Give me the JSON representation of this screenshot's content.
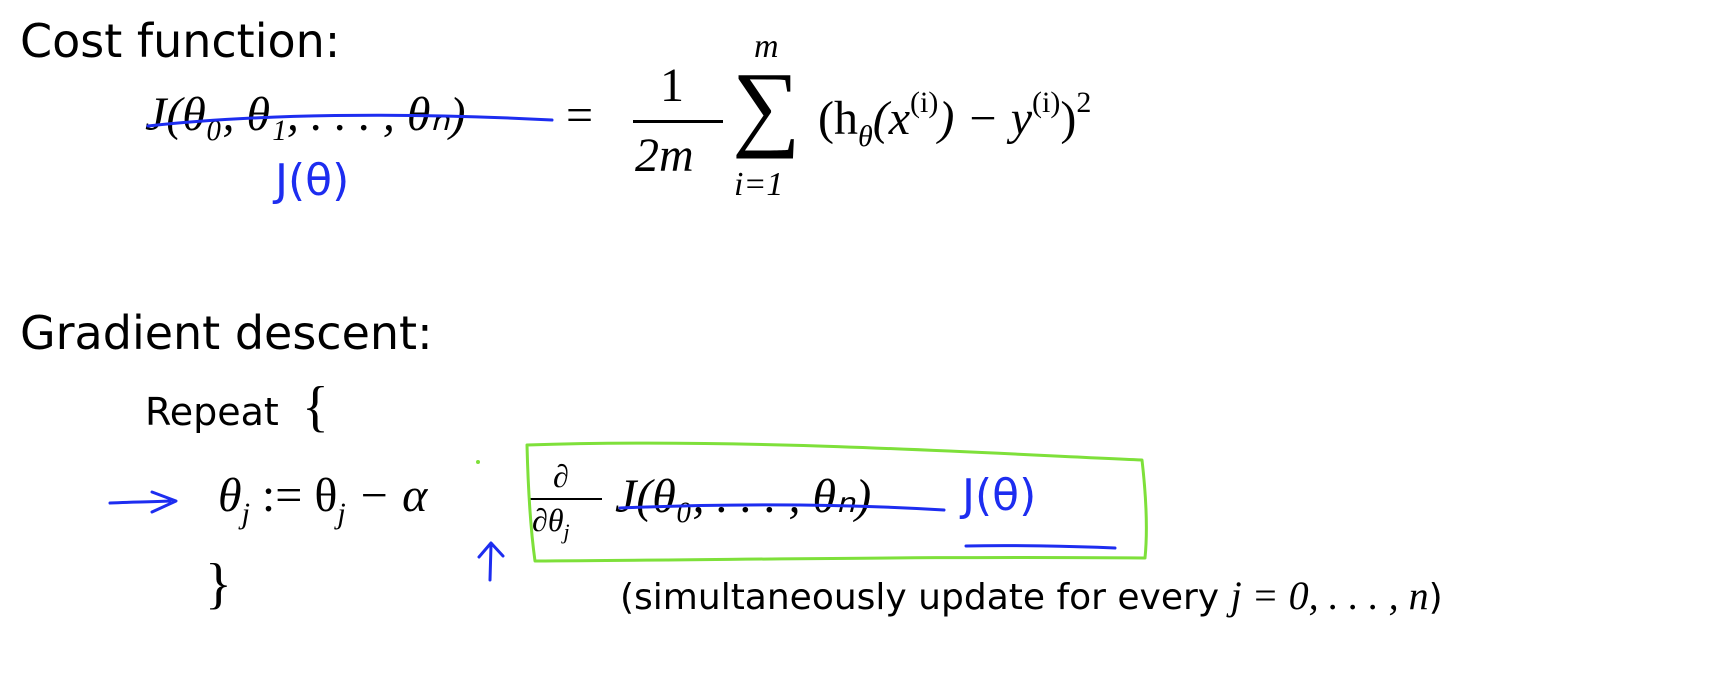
{
  "cost": {
    "heading": "Cost function:",
    "lhs": "J(θ₀, θ₁, . . . , θₙ)",
    "equals": "=",
    "frac_num": "1",
    "frac_den": "2m",
    "sum_sign": "∑",
    "sum_top": "m",
    "sum_bottom": "i=1",
    "term_open": "(h",
    "term_theta_sub": "θ",
    "term_x": "(x",
    "term_x_sup": "(i)",
    "term_minus": ") − y",
    "term_y_sup": "(i)",
    "term_close": ")",
    "term_square": "2",
    "handwritten": "J(θ)"
  },
  "gradient": {
    "heading": "Gradient descent:",
    "repeat_label": "Repeat",
    "open_brace": "{",
    "update_theta": "θ",
    "update_j": "j",
    "assign": " := θ",
    "assign_j": "j",
    "minus_alpha": " − α",
    "partial_num": "∂",
    "partial_den": "∂θ",
    "partial_den_j": "j",
    "J_args": "J(θ₀, . . . , θₙ)",
    "handwritten": "J(θ)",
    "close_brace": "}",
    "note": "(simultaneously update for every ",
    "note_math": "j = 0, . . . , n",
    "note_end": ")"
  },
  "colors": {
    "ink_blue": "#1d2df0",
    "box_green": "#7ee03a"
  }
}
